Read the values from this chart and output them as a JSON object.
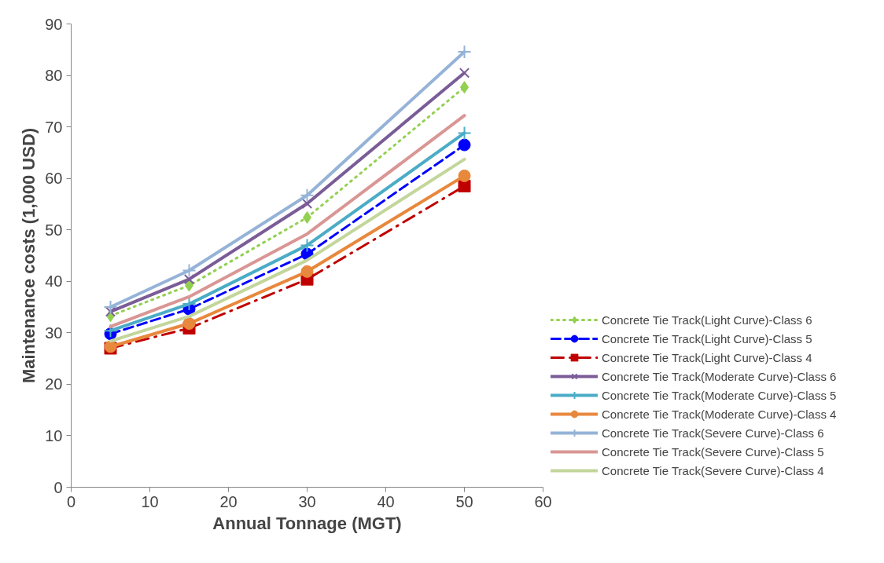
{
  "chart_data": {
    "type": "line",
    "xlabel": "Annual Tonnage (MGT)",
    "ylabel": "Maintenance costs (1,000 USD)",
    "x": [
      5,
      15,
      30,
      50
    ],
    "xlim": [
      0,
      60
    ],
    "xticks": [
      0,
      10,
      20,
      30,
      40,
      50,
      60
    ],
    "ylim": [
      0,
      90
    ],
    "yticks": [
      0,
      10,
      20,
      30,
      40,
      50,
      60,
      70,
      80,
      90
    ],
    "grid": false,
    "legend": "right",
    "series": [
      {
        "name": "Concrete Tie Track(Light Curve)-Class 6",
        "color": "#92d050",
        "marker": "diamond",
        "line_style": "dotted",
        "values": [
          33.3,
          39.2,
          52.4,
          77.7
        ]
      },
      {
        "name": "Concrete Tie Track(Light Curve)-Class 5",
        "color": "#0000ff",
        "marker": "circle",
        "line_style": "dashed",
        "values": [
          29.8,
          34.6,
          45.3,
          66.5
        ]
      },
      {
        "name": "Concrete Tie Track(Light Curve)-Class 4",
        "color": "#c00000",
        "marker": "square",
        "line_style": "dashdot",
        "values": [
          27.0,
          30.9,
          40.4,
          58.5
        ]
      },
      {
        "name": "Concrete Tie Track(Moderate Curve)-Class 6",
        "color": "#7a5c97",
        "marker": "x",
        "line_style": "solid",
        "values": [
          34.1,
          40.4,
          55.1,
          80.5
        ]
      },
      {
        "name": "Concrete Tie Track(Moderate Curve)-Class 5",
        "color": "#4bacc6",
        "marker": "cross",
        "line_style": "solid",
        "values": [
          30.4,
          35.6,
          47.0,
          68.8
        ]
      },
      {
        "name": "Concrete Tie Track(Moderate Curve)-Class 4",
        "color": "#e8883c",
        "marker": "circle",
        "line_style": "solid",
        "values": [
          27.3,
          31.8,
          41.9,
          60.5
        ]
      },
      {
        "name": "Concrete Tie Track(Severe Curve)-Class 6",
        "color": "#95b3d7",
        "marker": "cross",
        "line_style": "solid",
        "values": [
          35.0,
          42.1,
          56.7,
          84.6
        ]
      },
      {
        "name": "Concrete Tie Track(Severe Curve)-Class 5",
        "color": "#d99694",
        "marker": "none",
        "line_style": "solid",
        "values": [
          31.2,
          37.0,
          49.2,
          72.2
        ]
      },
      {
        "name": "Concrete Tie Track(Severe Curve)-Class 4",
        "color": "#c3d69b",
        "marker": "none",
        "line_style": "solid",
        "values": [
          28.4,
          33.2,
          44.1,
          63.7
        ]
      }
    ]
  }
}
